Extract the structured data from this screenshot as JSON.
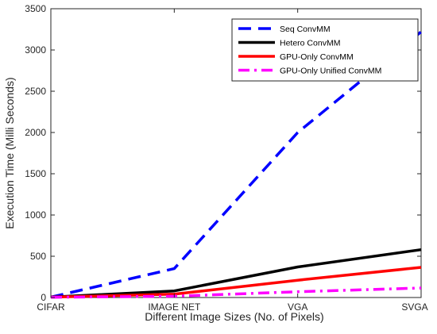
{
  "chart_data": {
    "type": "line",
    "categories": [
      "CIFAR",
      "IMAGE NET",
      "VGA",
      "SVGA"
    ],
    "series": [
      {
        "name": "Seq ConvMM",
        "values": [
          5,
          350,
          2000,
          3220
        ],
        "color": "#0000ff",
        "style": "dashed"
      },
      {
        "name": "Hetero ConvMM",
        "values": [
          5,
          80,
          370,
          580
        ],
        "color": "#000000",
        "style": "solid"
      },
      {
        "name": "GPU-Only ConvMM",
        "values": [
          5,
          40,
          210,
          365
        ],
        "color": "#ff0000",
        "style": "solid"
      },
      {
        "name": "GPU-Only Unified ConvMM",
        "values": [
          3,
          15,
          70,
          115
        ],
        "color": "#ff00ff",
        "style": "dashdot"
      }
    ],
    "xlabel": "Different Image Sizes (No. of Pixels)",
    "ylabel": "Execution Time (Milli Seconds)",
    "ylim": [
      0,
      3500
    ],
    "yticks": [
      0,
      500,
      1000,
      1500,
      2000,
      2500,
      3000,
      3500
    ],
    "grid": false,
    "legend_position": "top-right"
  }
}
